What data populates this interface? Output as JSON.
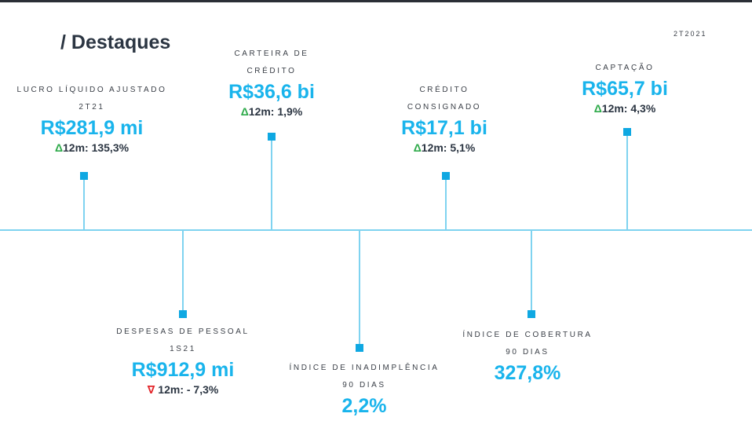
{
  "header": {
    "title": "/ Destaques",
    "period": "2T2021"
  },
  "highlights": [
    {
      "label": "LUCRO LÍQUIDO AJUSTADO",
      "sublabel": "2T21",
      "value": "R$281,9 mi",
      "delta_symbol": "Δ",
      "delta_text": "12m: 135,3%"
    },
    {
      "label": "CARTEIRA DE",
      "sublabel": "CRÉDITO",
      "value": "R$36,6 bi",
      "delta_symbol": "Δ",
      "delta_text": "12m: 1,9%"
    },
    {
      "label": "CRÉDITO",
      "sublabel": "CONSIGNADO",
      "value": "R$17,1 bi",
      "delta_symbol": "Δ",
      "delta_text": "12m: 5,1%"
    },
    {
      "label": "CAPTAÇÃO",
      "value": "R$65,7 bi",
      "delta_symbol": "Δ",
      "delta_text": "12m: 4,3%"
    },
    {
      "label": "DESPESAS DE PESSOAL",
      "sublabel": "1S21",
      "value": "R$912,9 mi",
      "delta_symbol": "∇",
      "delta_text": " 12m: - 7,3%"
    },
    {
      "label": "ÍNDICE DE INADIMPLÊNCIA",
      "sublabel": "90 DIAS",
      "value": "2,2%"
    },
    {
      "label": "ÍNDICE DE COBERTURA",
      "sublabel": "90 DIAS",
      "value": "327,8%"
    }
  ],
  "colors": {
    "accent": "#19b4ec",
    "line": "#7fd3f0",
    "positive": "#2eaa4a",
    "negative": "#e3262b",
    "text": "#2b3542"
  }
}
